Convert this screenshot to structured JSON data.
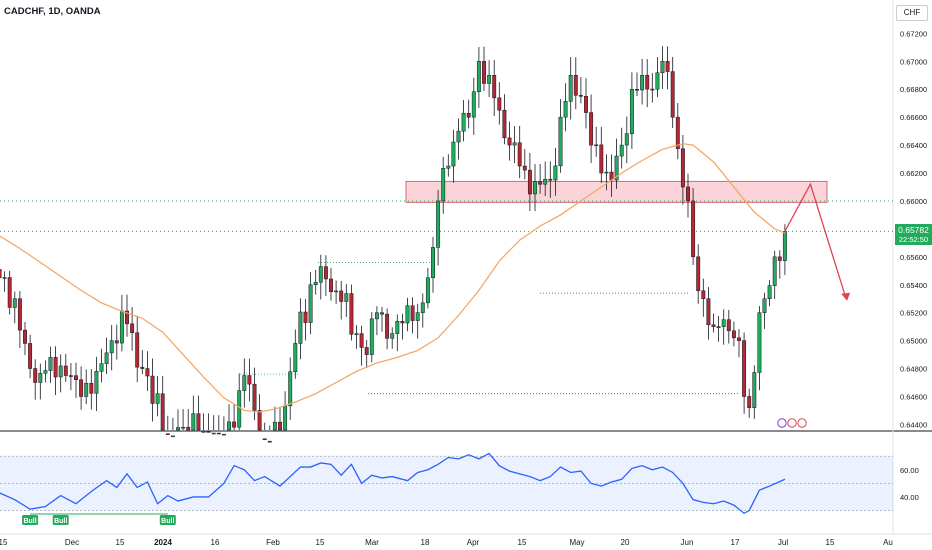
{
  "header": {
    "symbol_title": "CADCHF, 1D, OANDA"
  },
  "currency_button": "CHF",
  "price_label": {
    "value": "0.65782",
    "countdown": "22:52:50"
  },
  "colors": {
    "bull": "#22ab5c",
    "bear": "#b22833",
    "ma": "#f7a35c",
    "rsi": "#2962ff",
    "zone": "#f9c6cc"
  },
  "chart_data": [
    {
      "type": "candlestick",
      "y_ticks": [
        "0.67200",
        "0.67000",
        "0.66800",
        "0.66600",
        "0.66400",
        "0.66200",
        "0.66000",
        "0.65800",
        "0.65600",
        "0.65400",
        "0.65200",
        "0.65000",
        "0.64800",
        "0.64600",
        "0.64400"
      ],
      "ylim": [
        0.6436,
        0.6726
      ],
      "x_ticks": [
        "15",
        "Dec",
        "15",
        "2024",
        "16",
        "Feb",
        "15",
        "Mar",
        "18",
        "Apr",
        "15",
        "May",
        "20",
        "Jun",
        "17",
        "Jul",
        "15",
        "Au"
      ],
      "zone": {
        "y_bottom": 0.6599,
        "y_top": 0.6614
      },
      "last_close": 0.65782,
      "moving_average": [
        {
          "i": 0,
          "v": 0.6575
        },
        {
          "i": 4,
          "v": 0.6566
        },
        {
          "i": 8,
          "v": 0.6556
        },
        {
          "i": 12,
          "v": 0.6546
        },
        {
          "i": 16,
          "v": 0.6536
        },
        {
          "i": 20,
          "v": 0.6527
        },
        {
          "i": 24,
          "v": 0.6521
        },
        {
          "i": 28,
          "v": 0.6516
        },
        {
          "i": 32,
          "v": 0.6506
        },
        {
          "i": 36,
          "v": 0.649
        },
        {
          "i": 40,
          "v": 0.6474
        },
        {
          "i": 44,
          "v": 0.6459
        },
        {
          "i": 48,
          "v": 0.645
        },
        {
          "i": 51,
          "v": 0.6449
        },
        {
          "i": 54,
          "v": 0.6451
        },
        {
          "i": 58,
          "v": 0.6456
        },
        {
          "i": 62,
          "v": 0.6462
        },
        {
          "i": 66,
          "v": 0.647
        },
        {
          "i": 70,
          "v": 0.6478
        },
        {
          "i": 74,
          "v": 0.6484
        },
        {
          "i": 78,
          "v": 0.6488
        },
        {
          "i": 82,
          "v": 0.6493
        },
        {
          "i": 86,
          "v": 0.6502
        },
        {
          "i": 90,
          "v": 0.6518
        },
        {
          "i": 94,
          "v": 0.6536
        },
        {
          "i": 98,
          "v": 0.6557
        },
        {
          "i": 102,
          "v": 0.6572
        },
        {
          "i": 106,
          "v": 0.6582
        },
        {
          "i": 110,
          "v": 0.659
        },
        {
          "i": 114,
          "v": 0.66
        },
        {
          "i": 118,
          "v": 0.661
        },
        {
          "i": 122,
          "v": 0.662
        },
        {
          "i": 126,
          "v": 0.6629
        },
        {
          "i": 130,
          "v": 0.6637
        },
        {
          "i": 134,
          "v": 0.6641
        },
        {
          "i": 136,
          "v": 0.664
        },
        {
          "i": 140,
          "v": 0.6628
        },
        {
          "i": 144,
          "v": 0.661
        },
        {
          "i": 148,
          "v": 0.6592
        },
        {
          "i": 152,
          "v": 0.658
        },
        {
          "i": 154,
          "v": 0.6577
        }
      ],
      "candle_anchors": [
        {
          "i": 0,
          "c": 0.6545
        },
        {
          "i": 3,
          "c": 0.653
        },
        {
          "i": 5,
          "c": 0.6498
        },
        {
          "i": 7,
          "c": 0.647
        },
        {
          "i": 10,
          "c": 0.6488
        },
        {
          "i": 13,
          "c": 0.6475
        },
        {
          "i": 16,
          "c": 0.646
        },
        {
          "i": 19,
          "c": 0.6478
        },
        {
          "i": 22,
          "c": 0.65
        },
        {
          "i": 25,
          "c": 0.6512
        },
        {
          "i": 28,
          "c": 0.648
        },
        {
          "i": 30,
          "c": 0.6455
        },
        {
          "i": 31,
          "c": 0.6462
        },
        {
          "i": 33,
          "c": 0.643
        },
        {
          "i": 36,
          "c": 0.6438
        },
        {
          "i": 40,
          "c": 0.6435
        },
        {
          "i": 43,
          "c": 0.6432
        },
        {
          "i": 46,
          "c": 0.6438
        },
        {
          "i": 48,
          "c": 0.6475
        },
        {
          "i": 50,
          "c": 0.645
        },
        {
          "i": 52,
          "c": 0.6428
        },
        {
          "i": 55,
          "c": 0.6432
        },
        {
          "i": 58,
          "c": 0.6498
        },
        {
          "i": 61,
          "c": 0.654
        },
        {
          "i": 63,
          "c": 0.6553
        },
        {
          "i": 65,
          "c": 0.6535
        },
        {
          "i": 67,
          "c": 0.6528
        },
        {
          "i": 70,
          "c": 0.6505
        },
        {
          "i": 72,
          "c": 0.649
        },
        {
          "i": 74,
          "c": 0.652
        },
        {
          "i": 77,
          "c": 0.6505
        },
        {
          "i": 80,
          "c": 0.6525
        },
        {
          "i": 82,
          "c": 0.652
        },
        {
          "i": 84,
          "c": 0.6545
        },
        {
          "i": 86,
          "c": 0.66
        },
        {
          "i": 88,
          "c": 0.6625
        },
        {
          "i": 90,
          "c": 0.665
        },
        {
          "i": 92,
          "c": 0.666
        },
        {
          "i": 94,
          "c": 0.67
        },
        {
          "i": 96,
          "c": 0.669
        },
        {
          "i": 98,
          "c": 0.6665
        },
        {
          "i": 100,
          "c": 0.664
        },
        {
          "i": 102,
          "c": 0.6625
        },
        {
          "i": 104,
          "c": 0.6605
        },
        {
          "i": 106,
          "c": 0.6612
        },
        {
          "i": 108,
          "c": 0.6615
        },
        {
          "i": 110,
          "c": 0.666
        },
        {
          "i": 112,
          "c": 0.669
        },
        {
          "i": 114,
          "c": 0.6675
        },
        {
          "i": 116,
          "c": 0.664
        },
        {
          "i": 118,
          "c": 0.662
        },
        {
          "i": 120,
          "c": 0.6615
        },
        {
          "i": 122,
          "c": 0.664
        },
        {
          "i": 124,
          "c": 0.668
        },
        {
          "i": 126,
          "c": 0.669
        },
        {
          "i": 128,
          "c": 0.668
        },
        {
          "i": 130,
          "c": 0.67
        },
        {
          "i": 132,
          "c": 0.666
        },
        {
          "i": 134,
          "c": 0.661
        },
        {
          "i": 135,
          "c": 0.66
        },
        {
          "i": 136,
          "c": 0.656
        },
        {
          "i": 138,
          "c": 0.653
        },
        {
          "i": 140,
          "c": 0.651
        },
        {
          "i": 142,
          "c": 0.6515
        },
        {
          "i": 144,
          "c": 0.6502
        },
        {
          "i": 145,
          "c": 0.65
        },
        {
          "i": 146,
          "c": 0.646
        },
        {
          "i": 147,
          "c": 0.6452
        },
        {
          "i": 149,
          "c": 0.652
        },
        {
          "i": 150,
          "c": 0.653
        },
        {
          "i": 152,
          "c": 0.656
        },
        {
          "i": 154,
          "c": 0.65782
        }
      ],
      "forecast_path": [
        {
          "i": 154,
          "v": 0.65782
        },
        {
          "i": 159,
          "v": 0.6612
        },
        {
          "i": 166,
          "v": 0.653
        }
      ]
    },
    {
      "type": "line",
      "indicator": "RSI",
      "y_ticks": [
        "60.00",
        "40.00"
      ],
      "ylim": [
        26,
        76
      ],
      "band": [
        30,
        70
      ],
      "mid": 50,
      "points": [
        {
          "i": 0,
          "v": 43
        },
        {
          "i": 3,
          "v": 38
        },
        {
          "i": 6,
          "v": 31
        },
        {
          "i": 9,
          "v": 33
        },
        {
          "i": 12,
          "v": 41
        },
        {
          "i": 15,
          "v": 35
        },
        {
          "i": 18,
          "v": 44
        },
        {
          "i": 21,
          "v": 52
        },
        {
          "i": 23,
          "v": 47
        },
        {
          "i": 25,
          "v": 57
        },
        {
          "i": 27,
          "v": 47
        },
        {
          "i": 29,
          "v": 51
        },
        {
          "i": 31,
          "v": 35
        },
        {
          "i": 33,
          "v": 41
        },
        {
          "i": 35,
          "v": 37
        },
        {
          "i": 38,
          "v": 40
        },
        {
          "i": 41,
          "v": 40
        },
        {
          "i": 44,
          "v": 50
        },
        {
          "i": 46,
          "v": 63
        },
        {
          "i": 48,
          "v": 60
        },
        {
          "i": 50,
          "v": 52
        },
        {
          "i": 52,
          "v": 55
        },
        {
          "i": 55,
          "v": 48
        },
        {
          "i": 57,
          "v": 55
        },
        {
          "i": 59,
          "v": 62
        },
        {
          "i": 61,
          "v": 62
        },
        {
          "i": 63,
          "v": 65
        },
        {
          "i": 65,
          "v": 64
        },
        {
          "i": 67,
          "v": 56
        },
        {
          "i": 69,
          "v": 64
        },
        {
          "i": 71,
          "v": 50
        },
        {
          "i": 73,
          "v": 56
        },
        {
          "i": 75,
          "v": 54
        },
        {
          "i": 77,
          "v": 55
        },
        {
          "i": 80,
          "v": 52
        },
        {
          "i": 82,
          "v": 58
        },
        {
          "i": 84,
          "v": 60
        },
        {
          "i": 86,
          "v": 64
        },
        {
          "i": 88,
          "v": 69
        },
        {
          "i": 90,
          "v": 68
        },
        {
          "i": 92,
          "v": 71
        },
        {
          "i": 94,
          "v": 68
        },
        {
          "i": 96,
          "v": 72
        },
        {
          "i": 98,
          "v": 63
        },
        {
          "i": 100,
          "v": 59
        },
        {
          "i": 102,
          "v": 57
        },
        {
          "i": 104,
          "v": 55
        },
        {
          "i": 106,
          "v": 52
        },
        {
          "i": 108,
          "v": 55
        },
        {
          "i": 110,
          "v": 62
        },
        {
          "i": 112,
          "v": 58
        },
        {
          "i": 114,
          "v": 59
        },
        {
          "i": 116,
          "v": 50
        },
        {
          "i": 118,
          "v": 48
        },
        {
          "i": 120,
          "v": 51
        },
        {
          "i": 122,
          "v": 53
        },
        {
          "i": 124,
          "v": 61
        },
        {
          "i": 126,
          "v": 63
        },
        {
          "i": 128,
          "v": 60
        },
        {
          "i": 130,
          "v": 62
        },
        {
          "i": 132,
          "v": 58
        },
        {
          "i": 134,
          "v": 50
        },
        {
          "i": 136,
          "v": 38
        },
        {
          "i": 138,
          "v": 36
        },
        {
          "i": 140,
          "v": 35
        },
        {
          "i": 142,
          "v": 37
        },
        {
          "i": 144,
          "v": 34
        },
        {
          "i": 146,
          "v": 28
        },
        {
          "i": 147,
          "v": 30
        },
        {
          "i": 149,
          "v": 45
        },
        {
          "i": 151,
          "v": 48
        },
        {
          "i": 154,
          "v": 53
        }
      ],
      "signals": [
        {
          "i": 6,
          "label": "Bull"
        },
        {
          "i": 12,
          "label": "Bull"
        },
        {
          "i": 33,
          "label": "Bull"
        }
      ]
    }
  ]
}
